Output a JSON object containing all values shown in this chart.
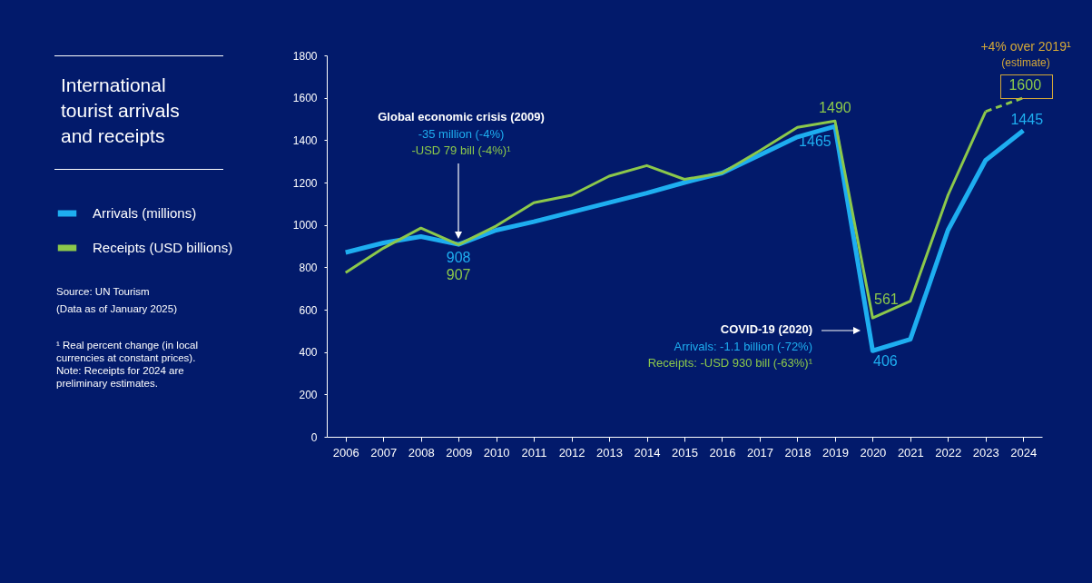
{
  "chart_data": {
    "type": "line",
    "title": "International tourist arrivals and receipts",
    "categories": [
      "2006",
      "2007",
      "2008",
      "2009",
      "2010",
      "2011",
      "2012",
      "2013",
      "2014",
      "2015",
      "2016",
      "2017",
      "2018",
      "2019",
      "2020",
      "2021",
      "2022",
      "2023",
      "2024"
    ],
    "series": [
      {
        "name": "Arrivals (millions)",
        "color": "#1eaef0",
        "values": [
          870,
          915,
          945,
          908,
          975,
          1015,
          1060,
          1105,
          1150,
          1200,
          1245,
          1330,
          1415,
          1465,
          406,
          460,
          975,
          1305,
          1445
        ],
        "value_labels": [
          null,
          null,
          null,
          "908",
          null,
          null,
          null,
          null,
          null,
          null,
          null,
          null,
          null,
          "1465",
          "406",
          null,
          null,
          null,
          "1445"
        ]
      },
      {
        "name": "Receipts (USD billions)",
        "color": "#8cc84b",
        "values": [
          775,
          890,
          985,
          907,
          995,
          1105,
          1140,
          1230,
          1280,
          1215,
          1245,
          1350,
          1460,
          1490,
          561,
          640,
          1140,
          1535,
          null
        ],
        "value_labels": [
          null,
          null,
          null,
          "907",
          null,
          null,
          null,
          null,
          null,
          null,
          null,
          null,
          null,
          "1490",
          "561",
          null,
          null,
          null,
          null
        ]
      },
      {
        "color": "#8cc84b",
        "line_style": "dashed",
        "values": [
          null,
          null,
          null,
          null,
          null,
          null,
          null,
          null,
          null,
          null,
          null,
          null,
          null,
          null,
          null,
          null,
          null,
          1535,
          1600
        ],
        "value_labels": [
          null,
          null,
          null,
          null,
          null,
          null,
          null,
          null,
          null,
          null,
          null,
          null,
          null,
          null,
          null,
          null,
          null,
          null,
          "1600"
        ]
      }
    ],
    "ylim": [
      0,
      1800
    ],
    "yticks": [
      0,
      200,
      400,
      600,
      800,
      1000,
      1200,
      1400,
      1600,
      1800
    ],
    "grid": false,
    "legend": "left",
    "line_style": "solid",
    "marker": "none",
    "annotations": [
      "Global economic crisis (2009)",
      "-35 million (-4%)",
      "-USD 79 bill (-4%)¹",
      "COVID-19 (2020)",
      "Arrivals: -1.1 billion (-72%)",
      "Receipts: -USD 930 bill (-63%)¹",
      "+4% over 2019¹",
      "(estimate)",
      "Source: UN Tourism",
      "(Data as of January 2025)",
      "¹ Real percent change (in local currencies at constant prices).",
      "Note: Receipts for 2024 are preliminary estimates."
    ]
  }
}
